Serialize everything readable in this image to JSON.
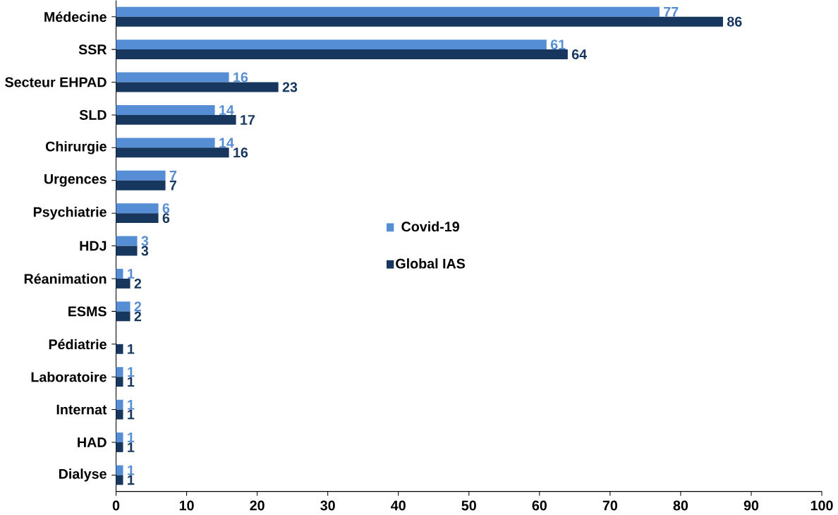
{
  "chart_data": {
    "type": "bar",
    "orientation": "horizontal",
    "categories": [
      "Médecine",
      "SSR",
      "Secteur EHPAD",
      "SLD",
      "Chirurgie",
      "Urgences",
      "Psychiatrie",
      "HDJ",
      "Réanimation",
      "ESMS",
      "Pédiatrie",
      "Laboratoire",
      "Internat",
      "HAD",
      "Dialyse"
    ],
    "series": [
      {
        "name": "Covid-19",
        "color": "#558ed5",
        "values": [
          77,
          61,
          16,
          14,
          14,
          7,
          6,
          3,
          1,
          2,
          null,
          1,
          1,
          1,
          1
        ]
      },
      {
        "name": "Global IAS",
        "color": "#17375e",
        "values": [
          86,
          64,
          23,
          17,
          16,
          7,
          6,
          3,
          2,
          2,
          1,
          1,
          1,
          1,
          1
        ]
      }
    ],
    "xlim": [
      0,
      100
    ],
    "xticks": [
      0,
      10,
      20,
      30,
      40,
      50,
      60,
      70,
      80,
      90,
      100
    ],
    "data_labels": true,
    "legend": "center",
    "grid": false
  }
}
